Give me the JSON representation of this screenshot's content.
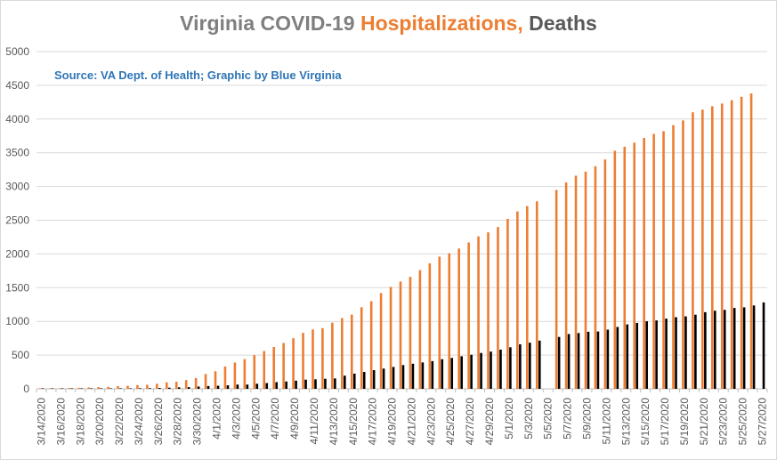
{
  "chart_data": {
    "type": "bar",
    "title_parts": [
      "Virginia COVID-19 ",
      "Hospitalizations,",
      " Deaths"
    ],
    "subtitle": "Source: VA Dept. of Health; Graphic by Blue Virginia",
    "ylim": [
      0,
      5000
    ],
    "yticks": [
      "0",
      "500",
      "1000",
      "1500",
      "2000",
      "2500",
      "3000",
      "3500",
      "4000",
      "4500",
      "5000"
    ],
    "grid": "horizontal",
    "colors": {
      "hospitalizations": "#ed7d31",
      "deaths": "#000000",
      "grid": "#d9d9d9",
      "axis": "#bfbfbf"
    },
    "categories": [
      "3/14/2020",
      "3/15/2020",
      "3/16/2020",
      "3/17/2020",
      "3/18/2020",
      "3/19/2020",
      "3/20/2020",
      "3/21/2020",
      "3/22/2020",
      "3/23/2020",
      "3/24/2020",
      "3/25/2020",
      "3/26/2020",
      "3/27/2020",
      "3/28/2020",
      "3/29/2020",
      "3/30/2020",
      "3/31/2020",
      "4/1/2020",
      "4/2/2020",
      "4/3/2020",
      "4/4/2020",
      "4/5/2020",
      "4/6/2020",
      "4/7/2020",
      "4/8/2020",
      "4/9/2020",
      "4/10/2020",
      "4/11/2020",
      "4/12/2020",
      "4/13/2020",
      "4/14/2020",
      "4/15/2020",
      "4/16/2020",
      "4/17/2020",
      "4/18/2020",
      "4/19/2020",
      "4/20/2020",
      "4/21/2020",
      "4/22/2020",
      "4/23/2020",
      "4/24/2020",
      "4/25/2020",
      "4/26/2020",
      "4/27/2020",
      "4/28/2020",
      "4/29/2020",
      "4/30/2020",
      "5/1/2020",
      "5/2/2020",
      "5/3/2020",
      "5/4/2020",
      "5/5/2020",
      "5/6/2020",
      "5/7/2020",
      "5/8/2020",
      "5/9/2020",
      "5/10/2020",
      "5/11/2020",
      "5/12/2020",
      "5/13/2020",
      "5/14/2020",
      "5/15/2020",
      "5/16/2020",
      "5/17/2020",
      "5/18/2020",
      "5/19/2020",
      "5/20/2020",
      "5/21/2020",
      "5/22/2020",
      "5/23/2020",
      "5/24/2020",
      "5/25/2020",
      "5/26/2020",
      "5/27/2020"
    ],
    "xtick_labels": [
      "3/14/2020",
      "3/16/2020",
      "3/18/2020",
      "3/20/2020",
      "3/22/2020",
      "3/24/2020",
      "3/26/2020",
      "3/28/2020",
      "3/30/2020",
      "4/1/2020",
      "4/3/2020",
      "4/5/2020",
      "4/7/2020",
      "4/9/2020",
      "4/11/2020",
      "4/13/2020",
      "4/15/2020",
      "4/17/2020",
      "4/19/2020",
      "4/21/2020",
      "4/23/2020",
      "4/25/2020",
      "4/27/2020",
      "4/29/2020",
      "5/1/2020",
      "5/3/2020",
      "5/5/2020",
      "5/7/2020",
      "5/9/2020",
      "5/11/2020",
      "5/13/2020",
      "5/15/2020",
      "5/17/2020",
      "5/19/2020",
      "5/21/2020",
      "5/23/2020",
      "5/25/2020",
      "5/27/2020"
    ],
    "series": [
      {
        "key": "hospitalizations",
        "values": [
          2,
          4,
          8,
          12,
          15,
          20,
          25,
          30,
          40,
          45,
          55,
          60,
          75,
          95,
          105,
          130,
          160,
          220,
          260,
          330,
          390,
          440,
          500,
          560,
          620,
          680,
          750,
          830,
          880,
          900,
          980,
          1050,
          1100,
          1210,
          1300,
          1420,
          1510,
          1590,
          1660,
          1760,
          1860,
          1960,
          2010,
          2080,
          2170,
          2260,
          2320,
          2400,
          2520,
          2630,
          2710,
          2780,
          null,
          2950,
          3060,
          3160,
          3220,
          3300,
          3400,
          3530,
          3590,
          3650,
          3720,
          3780,
          3820,
          3910,
          3980,
          4100,
          4140,
          4190,
          4230,
          4280,
          4330,
          4380,
          null
        ],
        "color": "#ed7d31"
      },
      {
        "key": "deaths",
        "values": [
          0,
          0,
          1,
          1,
          2,
          2,
          3,
          3,
          6,
          7,
          9,
          10,
          13,
          17,
          22,
          25,
          34,
          41,
          45,
          52,
          63,
          63,
          75,
          85,
          99,
          109,
          121,
          136,
          141,
          149,
          154,
          195,
          225,
          250,
          277,
          300,
          324,
          352,
          372,
          391,
          411,
          439,
          458,
          483,
          505,
          532,
          552,
          581,
          616,
          660,
          684,
          715,
          null,
          769,
          812,
          827,
          846,
          850,
          877,
          917,
          955,
          977,
          1002,
          1014,
          1041,
          1062,
          1074,
          1099,
          1136,
          1158,
          1171,
          1199,
          1208,
          1236,
          1281
        ],
        "color": "#000000"
      }
    ]
  }
}
